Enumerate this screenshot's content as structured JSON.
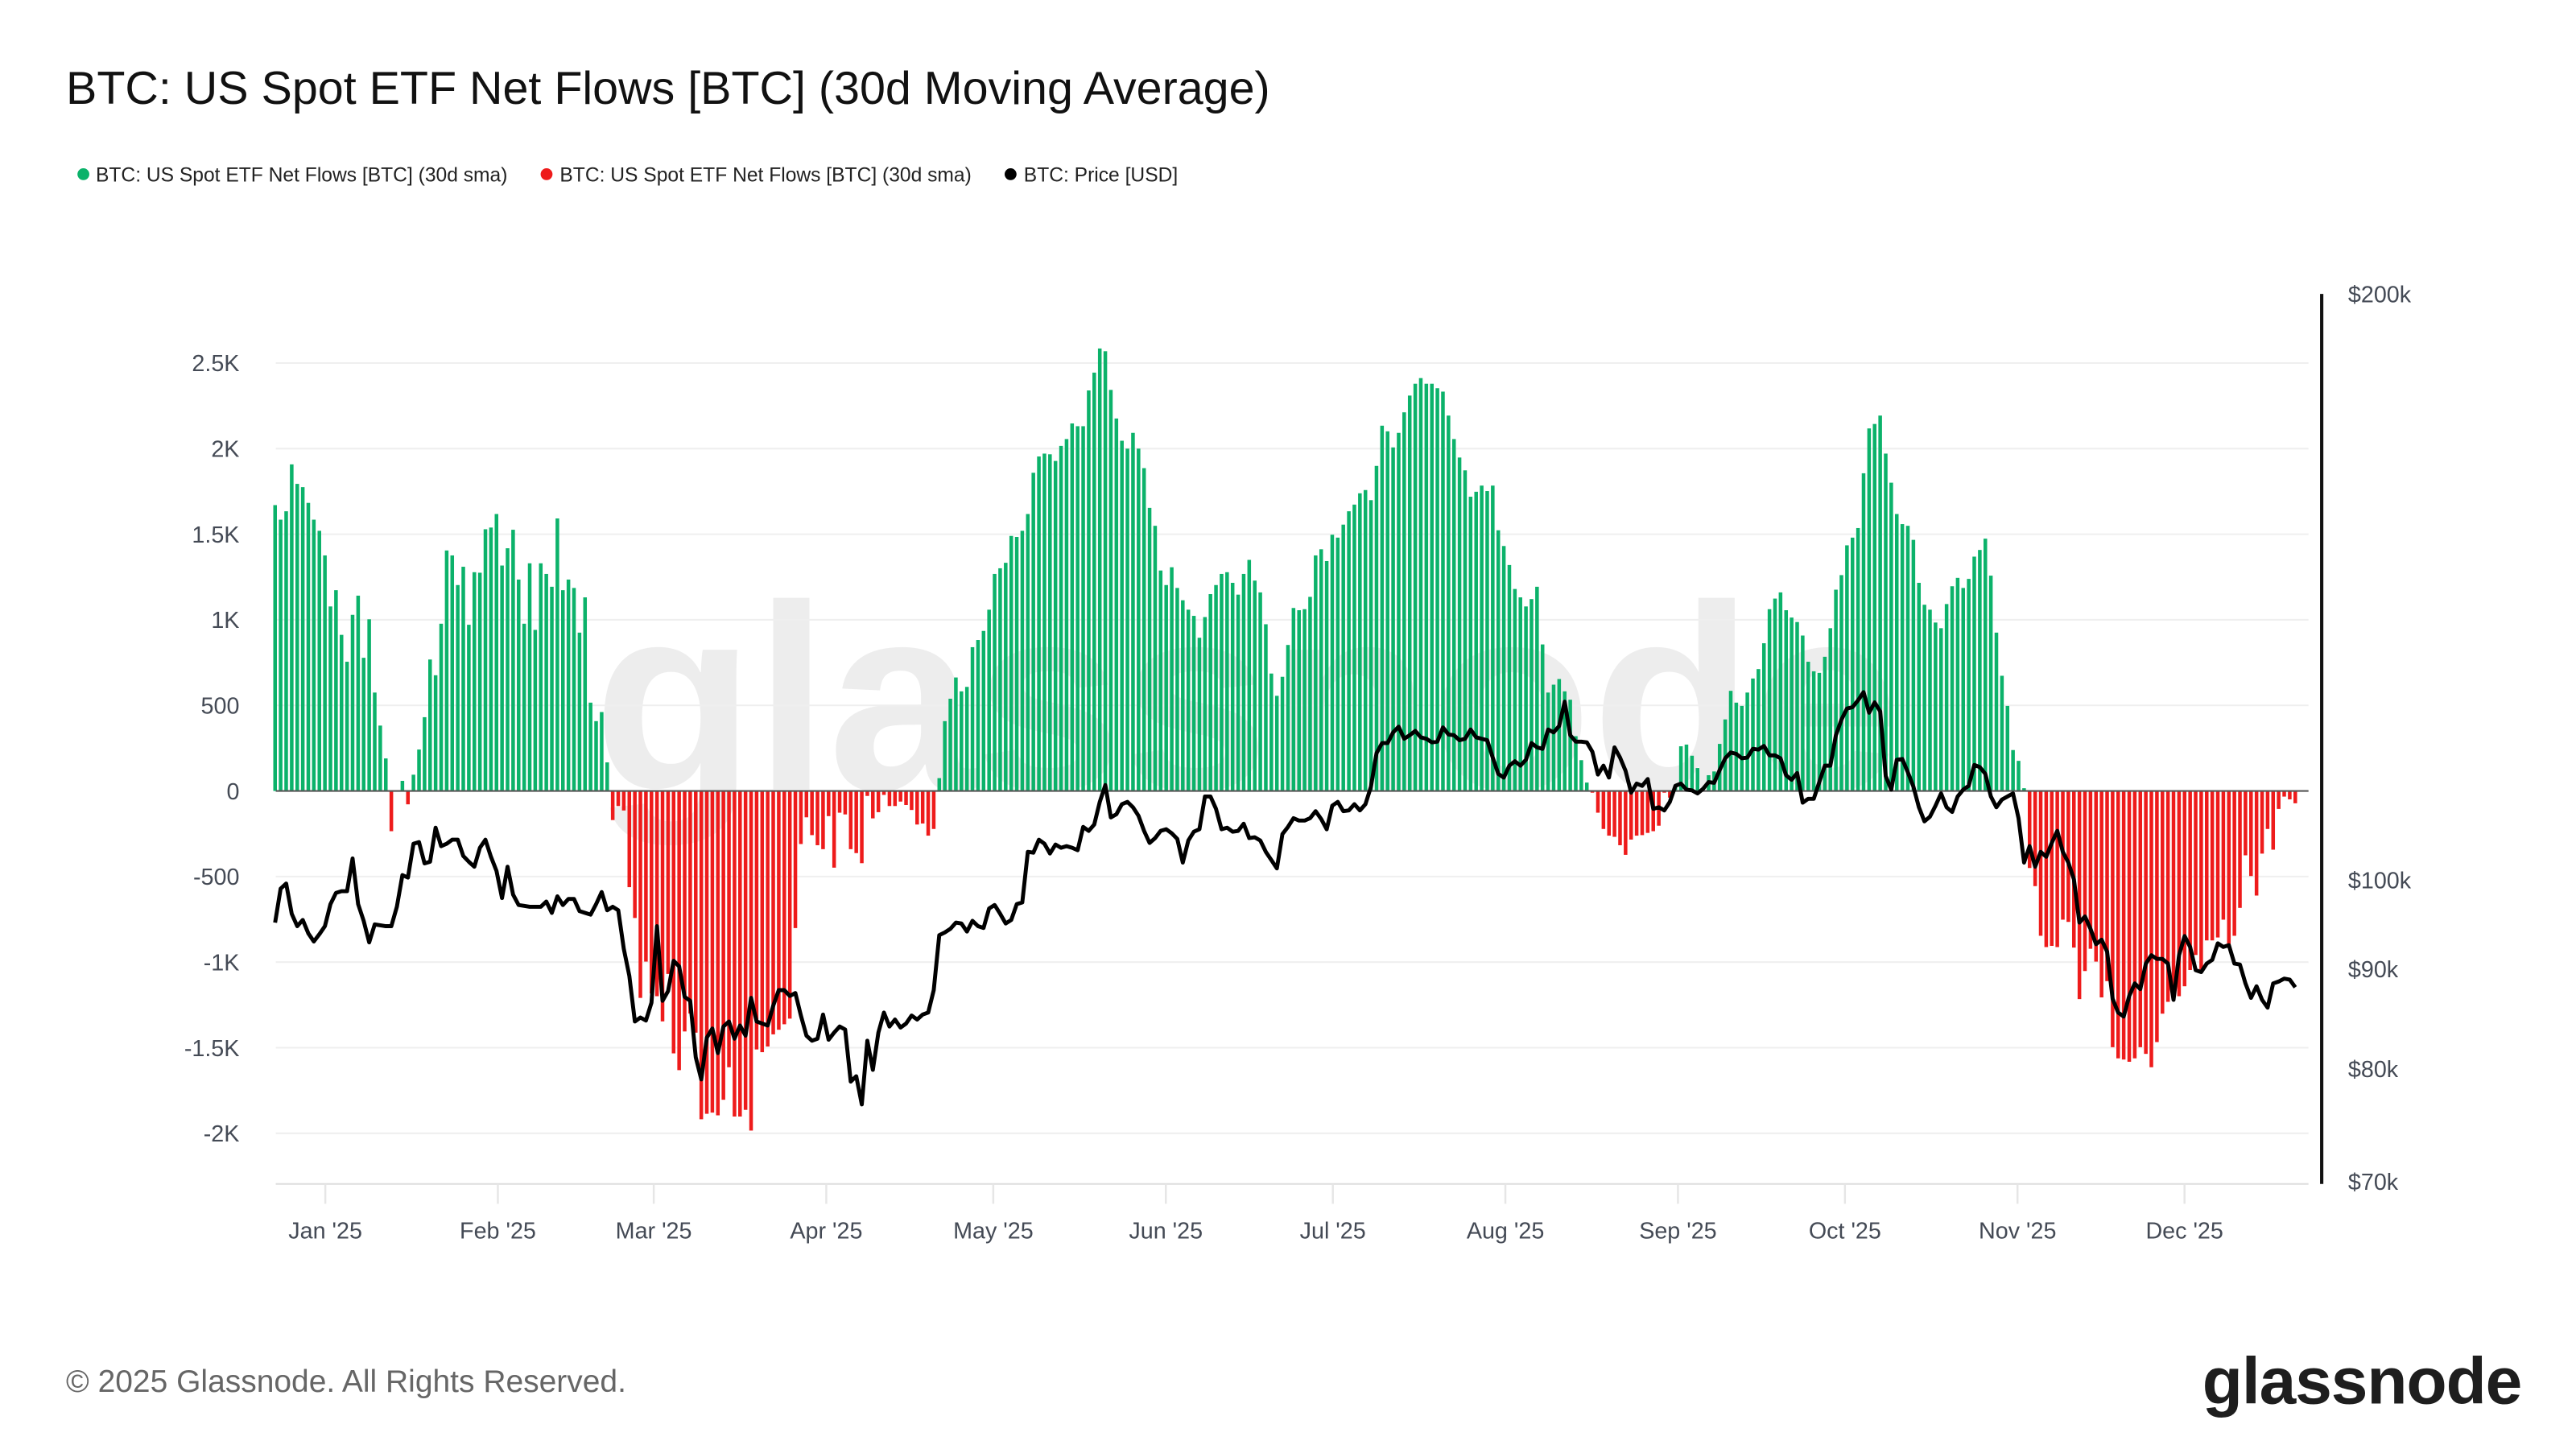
{
  "title": "BTC: US Spot ETF Net Flows [BTC] (30d Moving Average)",
  "footer": "© 2025 Glassnode. All Rights Reserved.",
  "logo": "glassnode",
  "watermark": "glassnode",
  "colors": {
    "positive": "#0bb26a",
    "negative": "#ee1b1b",
    "price": "#000000",
    "zero_line": "#555555"
  },
  "chart_data": {
    "type": "bar+line",
    "title": "BTC: US Spot ETF Net Flows [BTC] (30d Moving Average)",
    "legend_placement": "top-left",
    "legend": [
      {
        "label": "BTC: US Spot ETF Net Flows [BTC] (30d sma)",
        "color": "#0bb26a"
      },
      {
        "label": "BTC: US Spot ETF Net Flows [BTC] (30d sma)",
        "color": "#ee1b1b"
      },
      {
        "label": "BTC: Price [USD]",
        "color": "#000000"
      }
    ],
    "grid": true,
    "x_range": [
      "2024-12-23",
      "2025-12-23"
    ],
    "x_ticks": [
      {
        "date": "2025-01-01",
        "label": "Jan '25"
      },
      {
        "date": "2025-02-01",
        "label": "Feb '25"
      },
      {
        "date": "2025-03-01",
        "label": "Mar '25"
      },
      {
        "date": "2025-04-01",
        "label": "Apr '25"
      },
      {
        "date": "2025-05-01",
        "label": "May '25"
      },
      {
        "date": "2025-06-01",
        "label": "Jun '25"
      },
      {
        "date": "2025-07-01",
        "label": "Jul '25"
      },
      {
        "date": "2025-08-01",
        "label": "Aug '25"
      },
      {
        "date": "2025-09-01",
        "label": "Sep '25"
      },
      {
        "date": "2025-10-01",
        "label": "Oct '25"
      },
      {
        "date": "2025-11-01",
        "label": "Nov '25"
      },
      {
        "date": "2025-12-01",
        "label": "Dec '25"
      }
    ],
    "y_left": {
      "ylim": [
        -2300,
        2500
      ],
      "ticks": [
        {
          "value": 2500,
          "label": "2.5K"
        },
        {
          "value": 2000,
          "label": "2K"
        },
        {
          "value": 1500,
          "label": "1.5K"
        },
        {
          "value": 1000,
          "label": "1K"
        },
        {
          "value": 500,
          "label": "500"
        },
        {
          "value": 0,
          "label": "0"
        },
        {
          "value": -500,
          "label": "-500"
        },
        {
          "value": -1000,
          "label": "-1K"
        },
        {
          "value": -1500,
          "label": "-1.5K"
        },
        {
          "value": -2000,
          "label": "-2K"
        }
      ]
    },
    "y_right": {
      "scale": "log",
      "ylim": [
        70000,
        200000
      ],
      "ticks": [
        {
          "value": 200000,
          "label": "$200k"
        },
        {
          "value": 100000,
          "label": "$100k"
        },
        {
          "value": 90000,
          "label": "$90k"
        },
        {
          "value": 80000,
          "label": "$80k"
        },
        {
          "value": 70000,
          "label": "$70k"
        }
      ]
    },
    "net_flows_btc": [
      1670,
      1585,
      1634,
      1908,
      1794,
      1775,
      1683,
      1585,
      1520,
      1376,
      1078,
      1173,
      912,
      755,
      1029,
      1141,
      778,
      1003,
      575,
      382,
      190,
      -235,
      0,
      59,
      -78,
      95,
      242,
      431,
      768,
      676,
      977,
      1405,
      1376,
      1203,
      1310,
      971,
      1278,
      1275,
      1529,
      1539,
      1618,
      1317,
      1418,
      1526,
      1235,
      977,
      1330,
      941,
      1330,
      1268,
      1193,
      1592,
      1173,
      1235,
      1186,
      925,
      1131,
      516,
      408,
      461,
      167,
      -170,
      -88,
      -114,
      -562,
      -742,
      -1209,
      -997,
      -1183,
      -1199,
      -1346,
      -1069,
      -1533,
      -1631,
      -1405,
      -1300,
      -1412,
      -1918,
      -1886,
      -1879,
      -1895,
      -1804,
      -1614,
      -1902,
      -1902,
      -1863,
      -1984,
      -1510,
      -1526,
      -1493,
      -1422,
      -1395,
      -1363,
      -1330,
      -801,
      -310,
      -154,
      -258,
      -317,
      -340,
      -147,
      -448,
      -127,
      -137,
      -340,
      -363,
      -422,
      -29,
      -160,
      -124,
      -23,
      -88,
      -88,
      -62,
      -82,
      -111,
      -196,
      -190,
      -261,
      -222,
      75,
      408,
      539,
      663,
      582,
      608,
      840,
      882,
      935,
      1059,
      1268,
      1301,
      1333,
      1490,
      1484,
      1520,
      1618,
      1859,
      1954,
      1971,
      1967,
      1928,
      2016,
      2056,
      2147,
      2131,
      2131,
      2340,
      2444,
      2585,
      2569,
      2343,
      2176,
      2046,
      2000,
      2092,
      2000,
      1886,
      1654,
      1549,
      1288,
      1203,
      1307,
      1186,
      1114,
      1059,
      1023,
      895,
      1016,
      1150,
      1203,
      1268,
      1278,
      1216,
      1147,
      1268,
      1350,
      1229,
      1160,
      974,
      686,
      556,
      667,
      853,
      1069,
      1056,
      1062,
      1134,
      1376,
      1412,
      1343,
      1497,
      1480,
      1556,
      1634,
      1673,
      1739,
      1758,
      1699,
      1899,
      2134,
      2101,
      2007,
      2092,
      2212,
      2310,
      2379,
      2412,
      2379,
      2379,
      2353,
      2333,
      2193,
      2056,
      1948,
      1873,
      1719,
      1748,
      1784,
      1752,
      1784,
      1523,
      1431,
      1320,
      1180,
      1131,
      1078,
      1121,
      1193,
      856,
      575,
      621,
      654,
      582,
      533,
      320,
      180,
      49,
      -10,
      -127,
      -222,
      -261,
      -268,
      -317,
      -373,
      -284,
      -261,
      -258,
      -245,
      -235,
      -203,
      -10,
      -39,
      36,
      261,
      271,
      206,
      134,
      0,
      92,
      114,
      275,
      418,
      585,
      516,
      497,
      575,
      657,
      712,
      863,
      1062,
      1124,
      1160,
      1056,
      1013,
      987,
      908,
      755,
      699,
      690,
      784,
      951,
      1176,
      1261,
      1435,
      1480,
      1536,
      1856,
      2118,
      2144,
      2193,
      1971,
      1801,
      1618,
      1559,
      1549,
      1467,
      1216,
      1088,
      1059,
      984,
      951,
      1092,
      1196,
      1245,
      1186,
      1239,
      1369,
      1408,
      1474,
      1258,
      925,
      673,
      497,
      239,
      176,
      16,
      -450,
      -556,
      -846,
      -912,
      -905,
      -912,
      -752,
      -765,
      -915,
      -1216,
      -1052,
      -922,
      -997,
      -1206,
      -1111,
      -1497,
      -1562,
      -1569,
      -1582,
      -1562,
      -1497,
      -1536,
      -1614,
      -1467,
      -1301,
      -1232,
      -1167,
      -1199,
      -1141,
      -1046,
      -958,
      -1043,
      -873,
      -873,
      -856,
      -752,
      -915,
      -846,
      -683,
      -376,
      -497,
      -611,
      -366,
      -222,
      -343,
      -105,
      -33,
      -49,
      -72
    ],
    "price_usd_k": [
      95.1,
      99.0,
      99.6,
      96.1,
      94.7,
      95.4,
      93.9,
      93.0,
      93.8,
      94.7,
      97.2,
      98.5,
      98.7,
      98.7,
      102.6,
      97.2,
      95.3,
      92.9,
      94.9,
      94.8,
      94.7,
      94.7,
      96.9,
      100.6,
      100.3,
      104.4,
      104.6,
      102.0,
      102.2,
      106.4,
      104.1,
      104.4,
      104.9,
      104.9,
      102.9,
      102.2,
      101.6,
      103.9,
      104.9,
      102.8,
      101.1,
      97.9,
      101.6,
      98.3,
      97.1,
      97.0,
      96.9,
      96.9,
      96.9,
      97.5,
      96.2,
      98.1,
      97.1,
      97.8,
      97.8,
      96.4,
      96.2,
      96.0,
      97.2,
      98.6,
      96.5,
      96.9,
      96.5,
      92.2,
      89.3,
      84.6,
      85.0,
      84.7,
      86.5,
      94.7,
      86.7,
      87.7,
      90.9,
      90.3,
      87.1,
      86.7,
      81.1,
      79.0,
      83.0,
      83.9,
      81.5,
      84.1,
      84.6,
      82.9,
      84.2,
      83.2,
      87.0,
      84.6,
      84.4,
      84.2,
      86.2,
      87.8,
      87.8,
      87.2,
      87.5,
      85.2,
      83.2,
      82.7,
      82.9,
      85.3,
      82.8,
      83.5,
      84.1,
      83.8,
      78.8,
      79.3,
      76.7,
      82.7,
      79.9,
      83.5,
      85.5,
      84.1,
      84.8,
      84.0,
      84.4,
      85.2,
      84.8,
      85.3,
      85.5,
      87.8,
      93.7,
      94.0,
      94.4,
      95.1,
      95.0,
      94.1,
      95.3,
      94.7,
      94.5,
      96.7,
      97.1,
      96.1,
      95.0,
      95.4,
      97.2,
      97.4,
      103.4,
      103.3,
      104.9,
      104.4,
      103.2,
      104.3,
      103.9,
      104.1,
      103.9,
      103.6,
      106.5,
      106.0,
      106.8,
      109.7,
      111.9,
      107.7,
      108.1,
      109.4,
      109.7,
      109.0,
      107.9,
      106.0,
      104.5,
      105.1,
      106.0,
      106.2,
      105.7,
      105.0,
      102.1,
      104.8,
      105.9,
      106.2,
      110.4,
      110.4,
      108.8,
      106.2,
      106.4,
      105.9,
      106.0,
      106.9,
      105.1,
      105.2,
      104.8,
      103.4,
      102.4,
      101.4,
      105.6,
      106.5,
      107.6,
      107.3,
      107.3,
      107.6,
      108.5,
      107.5,
      106.2,
      109.2,
      109.7,
      108.5,
      108.6,
      109.4,
      108.6,
      109.4,
      111.7,
      116.2,
      117.6,
      117.6,
      119.1,
      119.9,
      118.2,
      118.7,
      119.3,
      118.4,
      118.2,
      117.7,
      117.8,
      119.8,
      118.8,
      118.7,
      118.0,
      118.2,
      119.5,
      118.4,
      118.2,
      118.0,
      115.6,
      113.4,
      112.9,
      114.5,
      115.1,
      114.5,
      115.3,
      117.6,
      117.0,
      116.8,
      119.5,
      119.1,
      120.0,
      123.5,
      118.7,
      117.8,
      117.8,
      117.7,
      116.4,
      113.3,
      114.5,
      112.9,
      117.0,
      115.6,
      113.8,
      110.9,
      112.1,
      111.8,
      112.7,
      108.8,
      109.0,
      108.6,
      109.7,
      111.8,
      112.1,
      111.3,
      111.2,
      110.8,
      111.4,
      112.3,
      112.2,
      113.9,
      115.5,
      116.3,
      116.1,
      115.5,
      115.6,
      116.8,
      116.7,
      117.2,
      115.9,
      115.9,
      115.5,
      113.2,
      112.6,
      113.5,
      109.6,
      110.1,
      110.1,
      112.3,
      114.5,
      114.5,
      118.7,
      120.9,
      122.5,
      122.7,
      123.7,
      124.9,
      121.9,
      123.4,
      122.1,
      113.1,
      111.3,
      115.3,
      115.4,
      113.6,
      111.7,
      109.0,
      107.2,
      107.8,
      109.2,
      110.8,
      109.0,
      108.4,
      110.4,
      111.3,
      111.8,
      114.6,
      114.3,
      113.4,
      110.4,
      109.0,
      110.0,
      110.4,
      110.8,
      107.6,
      102.1,
      104.1,
      101.6,
      103.4,
      102.8,
      104.5,
      106.0,
      103.4,
      102.1,
      100.1,
      95.1,
      95.8,
      94.4,
      92.7,
      93.2,
      91.9,
      86.9,
      85.5,
      85.1,
      87.2,
      88.5,
      87.9,
      90.6,
      91.5,
      91.1,
      91.1,
      90.6,
      86.8,
      91.5,
      93.6,
      92.4,
      89.9,
      89.7,
      90.6,
      91.0,
      92.8,
      92.4,
      92.6,
      90.6,
      90.5,
      88.5,
      87.0,
      88.2,
      86.8,
      86.0,
      88.5,
      88.7,
      89.0,
      88.9,
      88.1
    ]
  }
}
